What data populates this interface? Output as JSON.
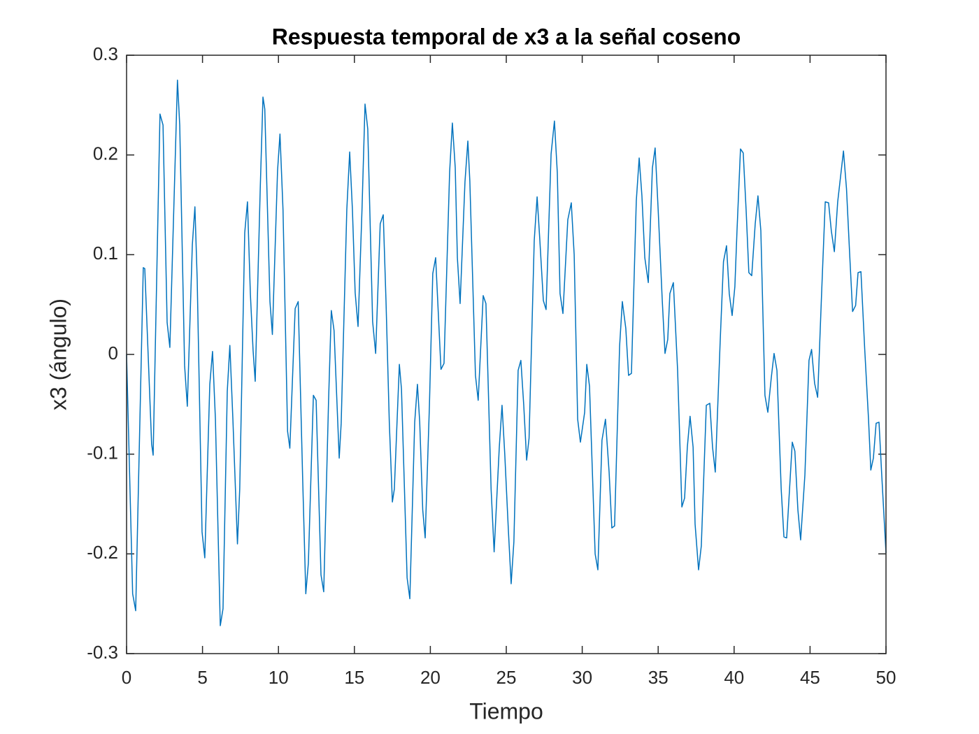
{
  "chart_data": {
    "type": "line",
    "title": "Respuesta temporal de x3 a la señal coseno",
    "x_label": "Tiempo",
    "y_label": "x3 (ángulo)",
    "color": "#0072bd",
    "xlim": [
      0,
      50
    ],
    "ylim": [
      -0.3,
      0.3
    ],
    "xticks": [
      0,
      5,
      10,
      15,
      20,
      25,
      30,
      35,
      40,
      45,
      50
    ],
    "yticks": [
      -0.3,
      -0.2,
      -0.1,
      0,
      0.1,
      0.2,
      0.3
    ],
    "box": true,
    "x": [
      0,
      0.4,
      0.6,
      1.1,
      1.2,
      1.65,
      1.75,
      2.2,
      2.4,
      2.67,
      2.85,
      3.35,
      3.5,
      3.82,
      4.0,
      4.33,
      4.5,
      4.65,
      4.97,
      5.15,
      5.48,
      5.66,
      5.85,
      6.17,
      6.35,
      6.63,
      6.8,
      7.0,
      7.3,
      7.45,
      7.78,
      7.96,
      8.15,
      8.33,
      8.47,
      8.8,
      8.98,
      9.1,
      9.44,
      9.6,
      9.94,
      10.1,
      10.3,
      10.6,
      10.75,
      11.1,
      11.3,
      11.6,
      11.8,
      11.97,
      12.3,
      12.48,
      12.8,
      12.98,
      13.3,
      13.48,
      13.66,
      14.0,
      14.13,
      14.5,
      14.69,
      14.87,
      15.05,
      15.24,
      15.5,
      15.7,
      15.88,
      16.2,
      16.4,
      16.7,
      16.9,
      17.08,
      17.3,
      17.5,
      17.63,
      17.96,
      18.1,
      18.47,
      18.65,
      18.97,
      19.15,
      19.3,
      19.5,
      19.66,
      19.94,
      20.16,
      20.35,
      20.7,
      20.9,
      21.27,
      21.45,
      21.64,
      21.78,
      21.96,
      22.28,
      22.47,
      22.6,
      22.97,
      23.15,
      23.48,
      23.66,
      24.0,
      24.2,
      24.54,
      24.72,
      24.9,
      25.14,
      25.32,
      25.5,
      25.78,
      25.96,
      26.15,
      26.34,
      26.5,
      26.84,
      27.03,
      27.2,
      27.44,
      27.62,
      27.95,
      28.17,
      28.36,
      28.54,
      28.73,
      29.05,
      29.28,
      29.47,
      29.7,
      29.88,
      30.16,
      30.3,
      30.48,
      30.85,
      31.03,
      31.3,
      31.53,
      31.77,
      31.95,
      32.13,
      32.46,
      32.64,
      32.87,
      33.05,
      33.24,
      33.56,
      33.75,
      33.93,
      34.12,
      34.35,
      34.62,
      34.8,
      35.0,
      35.27,
      35.45,
      35.63,
      35.77,
      36.0,
      36.28,
      36.56,
      36.74,
      36.92,
      37.1,
      37.3,
      37.43,
      37.66,
      37.84,
      38.17,
      38.4,
      38.58,
      38.76,
      39.08,
      39.3,
      39.5,
      39.68,
      39.87,
      40.05,
      40.19,
      40.42,
      40.6,
      40.79,
      40.97,
      41.16,
      41.39,
      41.57,
      41.76,
      42.03,
      42.22,
      42.45,
      42.63,
      42.82,
      43.1,
      43.28,
      43.46,
      43.65,
      43.83,
      44.0,
      44.2,
      44.38,
      44.66,
      44.93,
      45.1,
      45.3,
      45.5,
      45.76,
      46.0,
      46.22,
      46.4,
      46.6,
      46.82,
      47.2,
      47.4,
      47.6,
      47.8,
      48.0,
      48.16,
      48.35,
      48.6,
      48.85,
      49.0,
      49.17,
      49.35,
      49.54,
      49.72,
      50
    ],
    "values": [
      0,
      -0.24,
      -0.257,
      0.087,
      0.086,
      -0.09,
      -0.101,
      0.241,
      0.23,
      0.032,
      0.007,
      0.275,
      0.23,
      -0.011,
      -0.052,
      0.11,
      0.148,
      0.075,
      -0.178,
      -0.204,
      -0.03,
      0.003,
      -0.065,
      -0.272,
      -0.255,
      -0.037,
      0.009,
      -0.065,
      -0.19,
      -0.135,
      0.122,
      0.153,
      0.061,
      0.004,
      -0.027,
      0.166,
      0.258,
      0.246,
      0.053,
      0.02,
      0.184,
      0.221,
      0.145,
      -0.077,
      -0.094,
      0.046,
      0.053,
      -0.128,
      -0.24,
      -0.209,
      -0.041,
      -0.046,
      -0.221,
      -0.238,
      -0.046,
      0.044,
      0.024,
      -0.104,
      -0.069,
      0.145,
      0.203,
      0.145,
      0.062,
      0.028,
      0.145,
      0.251,
      0.226,
      0.033,
      0.001,
      0.131,
      0.14,
      0.054,
      -0.069,
      -0.148,
      -0.135,
      -0.01,
      -0.035,
      -0.224,
      -0.245,
      -0.068,
      -0.03,
      -0.068,
      -0.156,
      -0.184,
      -0.051,
      0.081,
      0.097,
      -0.015,
      -0.009,
      0.183,
      0.232,
      0.187,
      0.097,
      0.051,
      0.173,
      0.214,
      0.174,
      -0.021,
      -0.046,
      0.059,
      0.051,
      -0.135,
      -0.198,
      -0.093,
      -0.051,
      -0.1,
      -0.177,
      -0.23,
      -0.188,
      -0.016,
      -0.006,
      -0.051,
      -0.106,
      -0.084,
      0.114,
      0.158,
      0.117,
      0.054,
      0.045,
      0.201,
      0.234,
      0.182,
      0.061,
      0.041,
      0.135,
      0.152,
      0.1,
      -0.065,
      -0.088,
      -0.058,
      -0.01,
      -0.032,
      -0.2,
      -0.216,
      -0.086,
      -0.065,
      -0.118,
      -0.174,
      -0.172,
      0.008,
      0.053,
      0.026,
      -0.021,
      -0.019,
      0.154,
      0.197,
      0.159,
      0.097,
      0.072,
      0.187,
      0.207,
      0.145,
      0.054,
      0.001,
      0.015,
      0.061,
      0.072,
      -0.016,
      -0.153,
      -0.144,
      -0.093,
      -0.062,
      -0.093,
      -0.17,
      -0.216,
      -0.192,
      -0.051,
      -0.049,
      -0.093,
      -0.118,
      0.012,
      0.093,
      0.109,
      0.061,
      0.039,
      0.068,
      0.124,
      0.206,
      0.202,
      0.145,
      0.082,
      0.079,
      0.131,
      0.159,
      0.124,
      -0.041,
      -0.058,
      -0.023,
      0.001,
      -0.016,
      -0.135,
      -0.183,
      -0.184,
      -0.135,
      -0.088,
      -0.097,
      -0.156,
      -0.186,
      -0.121,
      -0.006,
      0.005,
      -0.029,
      -0.043,
      0.061,
      0.153,
      0.152,
      0.124,
      0.103,
      0.153,
      0.204,
      0.166,
      0.103,
      0.043,
      0.049,
      0.082,
      0.083,
      0.005,
      -0.065,
      -0.116,
      -0.104,
      -0.069,
      -0.068,
      -0.121,
      -0.199
    ]
  }
}
